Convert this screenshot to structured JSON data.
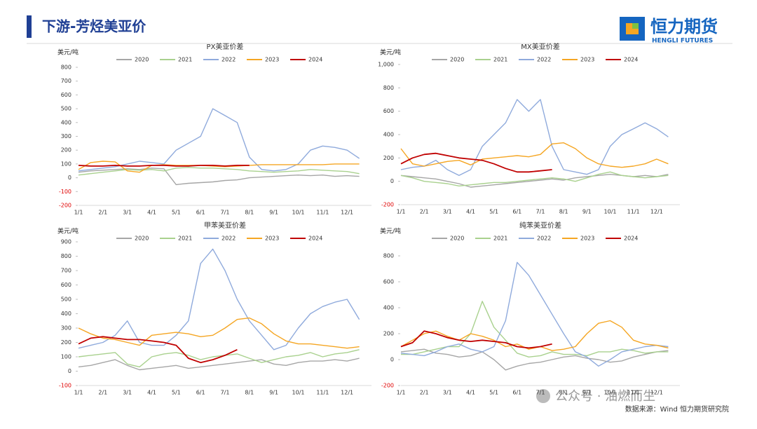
{
  "header": {
    "title": "下游-芳烃美亚价"
  },
  "logo": {
    "name": "恒力期货",
    "english": "HENGLI FUTURES"
  },
  "watermark": "公众号 · 油燃而生",
  "footer": {
    "source": "数据来源：Wind 恒力期货研究院"
  },
  "chart_data": [
    {
      "type": "line",
      "title": "PX美亚价差",
      "y_label": "美元/吨",
      "categories": [
        "1/1",
        null,
        "2/1",
        null,
        "3/1",
        null,
        "4/1",
        null,
        "5/1",
        null,
        "6/1",
        null,
        "7/1",
        null,
        "8/1",
        null,
        "9/1",
        null,
        "10/1",
        null,
        "11/1",
        null,
        "12/1",
        null
      ],
      "ylim": [
        -200,
        800
      ],
      "yticks": [
        -200,
        -100,
        0,
        100,
        200,
        300,
        400,
        500,
        600,
        700,
        800
      ],
      "series": [
        {
          "name": "2020",
          "color": "#a6a6a6",
          "values": [
            40,
            50,
            55,
            60,
            65,
            60,
            70,
            65,
            -50,
            -40,
            -35,
            -30,
            -20,
            -15,
            0,
            5,
            10,
            15,
            20,
            15,
            20,
            10,
            15,
            10
          ]
        },
        {
          "name": "2021",
          "color": "#a9d18e",
          "values": [
            20,
            30,
            40,
            50,
            60,
            55,
            60,
            50,
            70,
            75,
            70,
            70,
            65,
            60,
            50,
            45,
            40,
            45,
            50,
            60,
            55,
            50,
            45,
            30
          ]
        },
        {
          "name": "2022",
          "color": "#8faadc",
          "values": [
            50,
            60,
            70,
            80,
            100,
            120,
            110,
            100,
            200,
            250,
            300,
            500,
            450,
            400,
            150,
            60,
            50,
            60,
            100,
            200,
            230,
            220,
            200,
            140
          ]
        },
        {
          "name": "2023",
          "color": "#f5a623",
          "values": [
            60,
            110,
            120,
            115,
            50,
            40,
            90,
            95,
            90,
            90,
            90,
            85,
            80,
            85,
            90,
            95,
            95,
            95,
            95,
            95,
            95,
            100,
            100,
            100
          ]
        },
        {
          "name": "2024",
          "color": "#c00000",
          "values": [
            90,
            85,
            85,
            90,
            85,
            85,
            90,
            90,
            85,
            85,
            90,
            90,
            85,
            90,
            90,
            null,
            null,
            null,
            null,
            null,
            null,
            null,
            null,
            null
          ]
        }
      ]
    },
    {
      "type": "line",
      "title": "MX美亚价差",
      "y_label": "美元/吨",
      "categories": [
        "1/1",
        null,
        "2/1",
        null,
        "3/1",
        null,
        "4/1",
        null,
        "5/1",
        null,
        "6/1",
        null,
        "7/1",
        null,
        "8/1",
        null,
        "9/1",
        null,
        "10/1",
        null,
        "11/1",
        null,
        "12/1",
        null
      ],
      "ylim": [
        -200,
        1000
      ],
      "yticks": [
        -200,
        0,
        200,
        400,
        600,
        800,
        {
          "value": 1000,
          "label": "1,000"
        }
      ],
      "series": [
        {
          "name": "2020",
          "color": "#a6a6a6",
          "values": [
            50,
            40,
            30,
            20,
            0,
            -20,
            -50,
            -40,
            -30,
            -20,
            -10,
            0,
            10,
            20,
            10,
            30,
            40,
            50,
            60,
            50,
            40,
            50,
            40,
            60
          ]
        },
        {
          "name": "2021",
          "color": "#a9d18e",
          "values": [
            50,
            30,
            0,
            -10,
            -20,
            -40,
            -30,
            -20,
            -10,
            -10,
            0,
            10,
            20,
            30,
            20,
            0,
            30,
            60,
            80,
            50,
            40,
            30,
            40,
            50
          ]
        },
        {
          "name": "2022",
          "color": "#8faadc",
          "values": [
            100,
            120,
            130,
            180,
            100,
            50,
            100,
            300,
            400,
            500,
            700,
            600,
            700,
            300,
            100,
            80,
            60,
            100,
            300,
            400,
            450,
            500,
            450,
            380
          ]
        },
        {
          "name": "2023",
          "color": "#f5a623",
          "values": [
            280,
            150,
            130,
            150,
            170,
            180,
            140,
            190,
            200,
            210,
            220,
            210,
            230,
            320,
            330,
            280,
            200,
            150,
            130,
            120,
            130,
            150,
            190,
            150
          ]
        },
        {
          "name": "2024",
          "color": "#c00000",
          "values": [
            150,
            200,
            230,
            240,
            220,
            200,
            190,
            180,
            150,
            110,
            80,
            80,
            90,
            100,
            null,
            null,
            null,
            null,
            null,
            null,
            null,
            null,
            null,
            null
          ]
        }
      ]
    },
    {
      "type": "line",
      "title": "甲苯美亚价差",
      "y_label": "美元/吨",
      "categories": [
        "1/1",
        null,
        "2/1",
        null,
        "3/1",
        null,
        "4/1",
        null,
        "5/1",
        null,
        "6/1",
        null,
        "7/1",
        null,
        "8/1",
        null,
        "9/1",
        null,
        "10/1",
        null,
        "11/1",
        null,
        "12/1",
        null
      ],
      "ylim": [
        -100,
        900
      ],
      "yticks": [
        -100,
        0,
        100,
        200,
        300,
        400,
        500,
        600,
        700,
        800,
        900
      ],
      "series": [
        {
          "name": "2020",
          "color": "#a6a6a6",
          "values": [
            30,
            40,
            60,
            80,
            40,
            10,
            20,
            30,
            40,
            20,
            30,
            40,
            50,
            60,
            70,
            80,
            50,
            40,
            60,
            70,
            70,
            80,
            70,
            90
          ]
        },
        {
          "name": "2021",
          "color": "#a9d18e",
          "values": [
            100,
            110,
            120,
            130,
            50,
            30,
            100,
            120,
            130,
            110,
            80,
            100,
            110,
            120,
            90,
            60,
            80,
            100,
            110,
            130,
            100,
            120,
            130,
            150
          ]
        },
        {
          "name": "2022",
          "color": "#8faadc",
          "values": [
            160,
            180,
            200,
            250,
            350,
            200,
            180,
            180,
            250,
            350,
            750,
            850,
            700,
            500,
            350,
            250,
            150,
            180,
            300,
            400,
            450,
            480,
            500,
            360
          ]
        },
        {
          "name": "2023",
          "color": "#f5a623",
          "values": [
            300,
            260,
            230,
            220,
            200,
            180,
            250,
            260,
            270,
            260,
            240,
            250,
            300,
            360,
            370,
            330,
            260,
            210,
            190,
            190,
            180,
            170,
            160,
            170
          ]
        },
        {
          "name": "2024",
          "color": "#c00000",
          "values": [
            190,
            230,
            240,
            230,
            220,
            220,
            210,
            200,
            180,
            90,
            60,
            80,
            110,
            150,
            null,
            null,
            null,
            null,
            null,
            null,
            null,
            null,
            null,
            null
          ]
        }
      ]
    },
    {
      "type": "line",
      "title": "纯苯美亚价差",
      "y_label": "美元/吨",
      "categories": [
        "1/1",
        null,
        "2/1",
        null,
        "3/1",
        null,
        "4/1",
        null,
        "5/1",
        null,
        "6/1",
        null,
        "7/1",
        null,
        "8/1",
        null,
        "9/1",
        null,
        "10/1",
        null,
        "11/1",
        null,
        "12/1",
        null
      ],
      "ylim": [
        -200,
        800
      ],
      "yticks": [
        -200,
        0,
        200,
        400,
        600,
        800
      ],
      "series": [
        {
          "name": "2020",
          "color": "#a6a6a6",
          "values": [
            60,
            70,
            80,
            50,
            40,
            20,
            30,
            60,
            0,
            -80,
            -50,
            -30,
            -20,
            0,
            20,
            30,
            10,
            0,
            -20,
            -10,
            20,
            40,
            60,
            70
          ]
        },
        {
          "name": "2021",
          "color": "#a9d18e",
          "values": [
            40,
            40,
            60,
            80,
            100,
            100,
            200,
            450,
            250,
            150,
            50,
            20,
            30,
            60,
            40,
            40,
            30,
            60,
            60,
            80,
            70,
            50,
            60,
            60
          ]
        },
        {
          "name": "2022",
          "color": "#8faadc",
          "values": [
            50,
            40,
            30,
            60,
            100,
            120,
            80,
            60,
            100,
            300,
            750,
            650,
            500,
            350,
            200,
            60,
            20,
            -50,
            0,
            60,
            80,
            100,
            110,
            100
          ]
        },
        {
          "name": "2023",
          "color": "#f5a623",
          "values": [
            100,
            150,
            200,
            220,
            180,
            150,
            200,
            180,
            150,
            100,
            120,
            80,
            100,
            70,
            80,
            100,
            200,
            280,
            300,
            250,
            150,
            120,
            110,
            90
          ]
        },
        {
          "name": "2024",
          "color": "#c00000",
          "values": [
            100,
            130,
            220,
            200,
            170,
            150,
            140,
            150,
            140,
            130,
            100,
            90,
            100,
            120,
            null,
            null,
            null,
            null,
            null,
            null,
            null,
            null,
            null,
            null
          ]
        }
      ]
    }
  ]
}
